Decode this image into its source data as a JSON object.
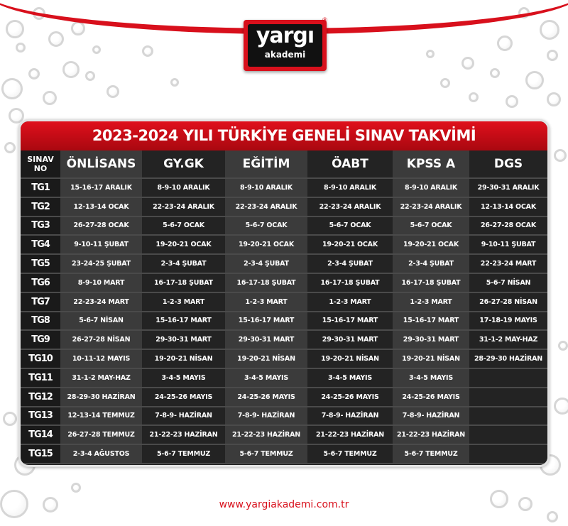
{
  "logo": {
    "brand": "yargı",
    "sub": "akademi",
    "reg": "®"
  },
  "title": "2023-2024 YILI TÜRKİYE GENELİ SINAV TAKVİMİ",
  "colors": {
    "accent": "#d8101c",
    "table_bg": "#1e1e1e"
  },
  "table": {
    "headers": [
      "SINAV NO",
      "ÖNLİSANS",
      "GY.GK",
      "EĞİTİM",
      "ÖABT",
      "KPSS A",
      "DGS"
    ],
    "rows": [
      [
        "TG1",
        "15-16-17 ARALIK",
        "8-9-10 ARALIK",
        "8-9-10 ARALIK",
        "8-9-10 ARALIK",
        "8-9-10 ARALIK",
        "29-30-31 ARALIK"
      ],
      [
        "TG2",
        "12-13-14 OCAK",
        "22-23-24 ARALIK",
        "22-23-24 ARALIK",
        "22-23-24 ARALIK",
        "22-23-24 ARALIK",
        "12-13-14 OCAK"
      ],
      [
        "TG3",
        "26-27-28 OCAK",
        "5-6-7 OCAK",
        "5-6-7 OCAK",
        "5-6-7 OCAK",
        "5-6-7 OCAK",
        "26-27-28 OCAK"
      ],
      [
        "TG4",
        "9-10-11 ŞUBAT",
        "19-20-21 OCAK",
        "19-20-21 OCAK",
        "19-20-21 OCAK",
        "19-20-21 OCAK",
        "9-10-11 ŞUBAT"
      ],
      [
        "TG5",
        "23-24-25 ŞUBAT",
        "2-3-4 ŞUBAT",
        "2-3-4 ŞUBAT",
        "2-3-4 ŞUBAT",
        "2-3-4 ŞUBAT",
        "22-23-24 MART"
      ],
      [
        "TG6",
        "8-9-10 MART",
        "16-17-18 ŞUBAT",
        "16-17-18 ŞUBAT",
        "16-17-18 ŞUBAT",
        "16-17-18 ŞUBAT",
        "5-6-7 NİSAN"
      ],
      [
        "TG7",
        "22-23-24 MART",
        "1-2-3 MART",
        "1-2-3 MART",
        "1-2-3 MART",
        "1-2-3 MART",
        "26-27-28 NİSAN"
      ],
      [
        "TG8",
        "5-6-7 NİSAN",
        "15-16-17 MART",
        "15-16-17 MART",
        "15-16-17 MART",
        "15-16-17 MART",
        "17-18-19 MAYIS"
      ],
      [
        "TG9",
        "26-27-28 NİSAN",
        "29-30-31 MART",
        "29-30-31 MART",
        "29-30-31 MART",
        "29-30-31 MART",
        "31-1-2 MAY-HAZ"
      ],
      [
        "TG10",
        "10-11-12 MAYIS",
        "19-20-21 NİSAN",
        "19-20-21 NİSAN",
        "19-20-21 NİSAN",
        "19-20-21 NİSAN",
        "28-29-30 HAZİRAN"
      ],
      [
        "TG11",
        "31-1-2 MAY-HAZ",
        "3-4-5 MAYIS",
        "3-4-5 MAYIS",
        "3-4-5 MAYIS",
        "3-4-5 MAYIS",
        ""
      ],
      [
        "TG12",
        "28-29-30 HAZİRAN",
        "24-25-26 MAYIS",
        "24-25-26 MAYIS",
        "24-25-26 MAYIS",
        "24-25-26 MAYIS",
        ""
      ],
      [
        "TG13",
        "12-13-14 TEMMUZ",
        "7-8-9- HAZİRAN",
        "7-8-9- HAZİRAN",
        "7-8-9- HAZİRAN",
        "7-8-9- HAZİRAN",
        ""
      ],
      [
        "TG14",
        "26-27-28 TEMMUZ",
        "21-22-23 HAZİRAN",
        "21-22-23 HAZİRAN",
        "21-22-23 HAZİRAN",
        "21-22-23 HAZİRAN",
        ""
      ],
      [
        "TG15",
        "2-3-4 AĞUSTOS",
        "5-6-7 TEMMUZ",
        "5-6-7 TEMMUZ",
        "5-6-7 TEMMUZ",
        "5-6-7 TEMMUZ",
        ""
      ]
    ]
  },
  "footer": {
    "url": "www.yargiakademi.com.tr"
  }
}
